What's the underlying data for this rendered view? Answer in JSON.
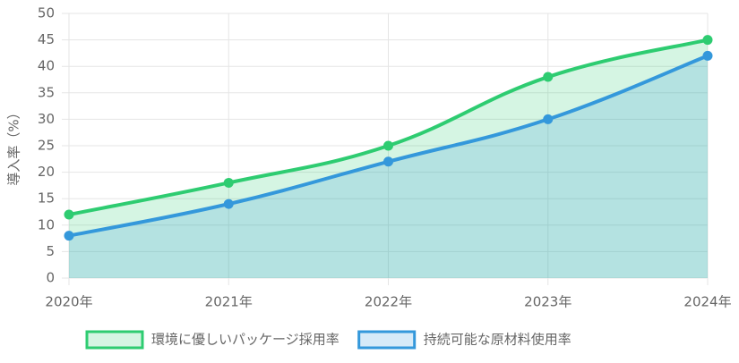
{
  "chart_data": {
    "type": "line",
    "ylabel": "導入率（%）",
    "categories": [
      "2020年",
      "2021年",
      "2022年",
      "2023年",
      "2024年"
    ],
    "series": [
      {
        "name": "環境に優しいパッケージ採用率",
        "color": "#2ecc71",
        "values": [
          12,
          18,
          25,
          38,
          45
        ]
      },
      {
        "name": "持続可能な原材料使用率",
        "color": "#3498db",
        "values": [
          8,
          14,
          22,
          30,
          42
        ]
      }
    ],
    "ylim": [
      0,
      50
    ],
    "yticks": [
      0,
      5,
      10,
      15,
      20,
      25,
      30,
      35,
      40,
      45,
      50
    ],
    "grid": true,
    "fill": true,
    "legend": "bottom"
  }
}
